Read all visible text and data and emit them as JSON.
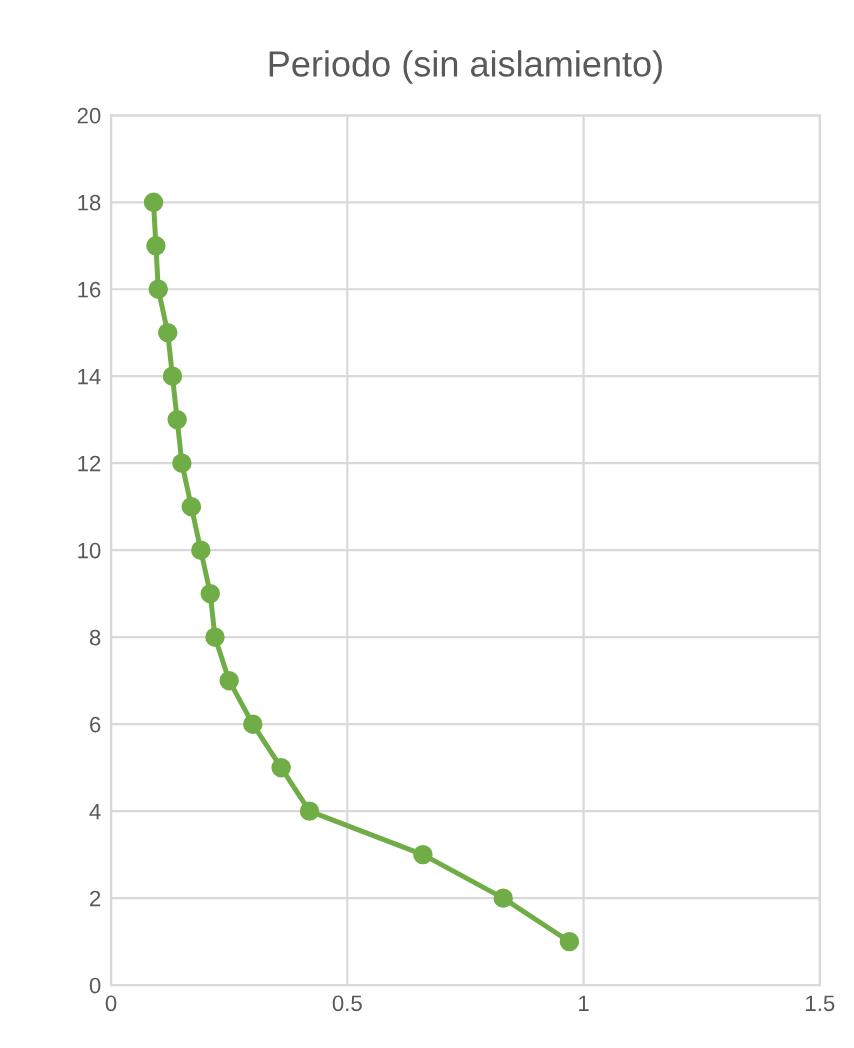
{
  "chart_data": {
    "type": "line",
    "title": "Periodo (sin aislamiento)",
    "series": [
      {
        "color": "#70ad47",
        "x": [
          0.09,
          0.095,
          0.1,
          0.12,
          0.13,
          0.14,
          0.15,
          0.17,
          0.19,
          0.21,
          0.22,
          0.25,
          0.3,
          0.36,
          0.42,
          0.66,
          0.83,
          0.97
        ],
        "values": [
          18,
          17,
          16,
          15,
          14,
          13,
          12,
          11,
          10,
          9,
          8,
          7,
          6,
          5,
          4,
          3,
          2,
          1
        ]
      }
    ],
    "xlim": [
      0,
      1.5
    ],
    "xticks": [
      0,
      0.5,
      1,
      1.5
    ],
    "ylim": [
      0,
      20
    ],
    "yticks": [
      0,
      2,
      4,
      6,
      8,
      10,
      12,
      14,
      16,
      18,
      20
    ],
    "grid": true,
    "marker": "circle",
    "line_style": "solid"
  }
}
